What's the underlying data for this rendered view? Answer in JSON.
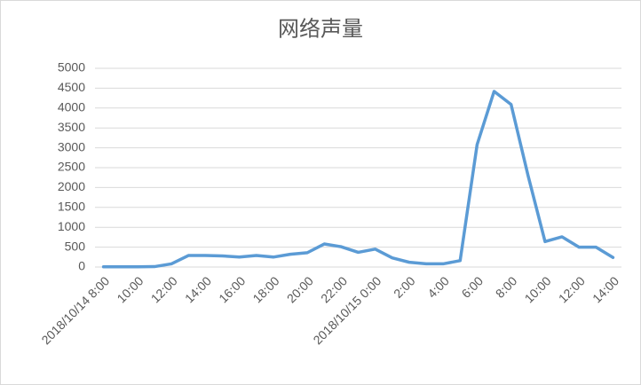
{
  "chart_data": {
    "type": "line",
    "title": "网络声量",
    "categories": [
      "2018/10/14 8:00",
      null,
      "10:00",
      null,
      "12:00",
      null,
      "14:00",
      null,
      "16:00",
      null,
      "18:00",
      null,
      "20:00",
      null,
      "22:00",
      null,
      "2018/10/15 0:00",
      null,
      "2:00",
      null,
      "4:00",
      null,
      "6:00",
      null,
      "8:00",
      null,
      "10:00",
      null,
      "12:00",
      null,
      "14:00"
    ],
    "series": [
      {
        "name": "网络声量",
        "color": "#5b9bd5",
        "values": [
          5,
          5,
          5,
          10,
          80,
          290,
          290,
          280,
          250,
          290,
          250,
          320,
          360,
          580,
          510,
          370,
          450,
          230,
          120,
          80,
          80,
          160,
          3080,
          4420,
          4090,
          2300,
          640,
          760,
          500,
          500,
          240
        ]
      }
    ],
    "ylim": [
      0,
      5000
    ],
    "yticks": [
      0,
      500,
      1000,
      1500,
      2000,
      2500,
      3000,
      3500,
      4000,
      4500,
      5000
    ],
    "grid": true
  }
}
